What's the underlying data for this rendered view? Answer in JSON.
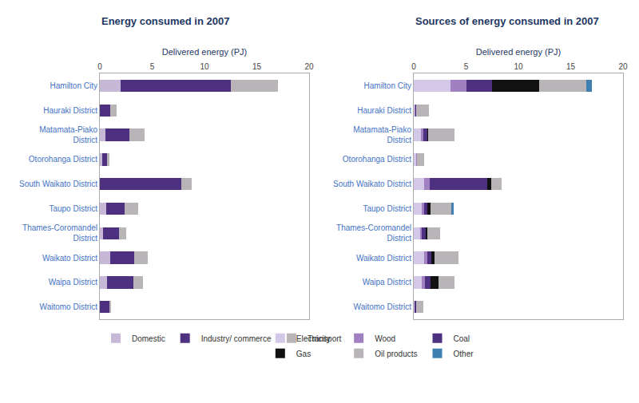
{
  "chart_data": [
    {
      "type": "bar",
      "title": "Energy consumed in 2007",
      "orientation": "horizontal",
      "stacked": true,
      "xlabel": "Delivered energy (PJ)",
      "categories": [
        "Hamilton City",
        "Hauraki District",
        "Matamata-Piako\nDistrict",
        "Otorohanga District",
        "South Waikato District",
        "Taupo District",
        "Thames-Coromandel\nDistrict",
        "Waikato District",
        "Waipa District",
        "Waitomo District"
      ],
      "series": [
        {
          "name": "Domestic",
          "color": "#c8b8d8",
          "values": [
            2.0,
            0.0,
            0.5,
            0.2,
            0.0,
            0.6,
            0.3,
            1.0,
            0.7,
            0.0
          ]
        },
        {
          "name": "Industry/ commerce",
          "color": "#4d3080",
          "values": [
            10.5,
            1.0,
            2.3,
            0.5,
            7.8,
            1.8,
            1.5,
            2.3,
            2.5,
            0.9
          ]
        },
        {
          "name": "Transport",
          "color": "#b8b4b8",
          "values": [
            4.5,
            0.6,
            1.5,
            0.2,
            1.0,
            1.3,
            0.7,
            1.3,
            0.9,
            0.2
          ]
        }
      ],
      "xlim": [
        0,
        20
      ],
      "xticks": [
        0,
        5,
        10,
        15,
        20
      ],
      "grid": false,
      "legend": "bottom"
    },
    {
      "type": "bar",
      "title": "Sources of energy consumed in 2007",
      "orientation": "horizontal",
      "stacked": true,
      "xlabel": "Delivered energy (PJ)",
      "categories": [
        "Hamilton City",
        "Hauraki District",
        "Matamata-Piako\nDistrict",
        "Otorohanga District",
        "South Waikato District",
        "Taupo District",
        "Thames-Coromandel\nDistrict",
        "Waikato District",
        "Waipa District",
        "Waitomo District"
      ],
      "series": [
        {
          "name": "Electricity",
          "color": "#d4c8e8",
          "values": [
            3.5,
            0.15,
            0.7,
            0.25,
            1.0,
            0.8,
            0.6,
            1.0,
            0.8,
            0.1
          ]
        },
        {
          "name": "Wood",
          "color": "#a080c0",
          "values": [
            1.5,
            0.05,
            0.2,
            0.05,
            0.5,
            0.2,
            0.2,
            0.3,
            0.3,
            0.05
          ]
        },
        {
          "name": "Coal",
          "color": "#4d3080",
          "values": [
            2.5,
            0.05,
            0.4,
            0.0,
            5.5,
            0.3,
            0.4,
            0.4,
            0.5,
            0.05
          ]
        },
        {
          "name": "Gas",
          "color": "#111111",
          "values": [
            4.5,
            0.0,
            0.1,
            0.0,
            0.4,
            0.3,
            0.1,
            0.3,
            0.8,
            0.0
          ]
        },
        {
          "name": "Oil products",
          "color": "#b8b4b8",
          "values": [
            4.5,
            1.2,
            2.5,
            0.7,
            1.0,
            2.0,
            1.2,
            2.3,
            1.5,
            0.7
          ]
        },
        {
          "name": "Other",
          "color": "#4080b0",
          "values": [
            0.5,
            0.0,
            0.0,
            0.0,
            0.0,
            0.2,
            0.0,
            0.0,
            0.0,
            0.0
          ]
        }
      ],
      "xlim": [
        0,
        20
      ],
      "xticks": [
        0,
        5,
        10,
        15,
        20
      ],
      "grid": false,
      "legend": "bottom"
    }
  ]
}
